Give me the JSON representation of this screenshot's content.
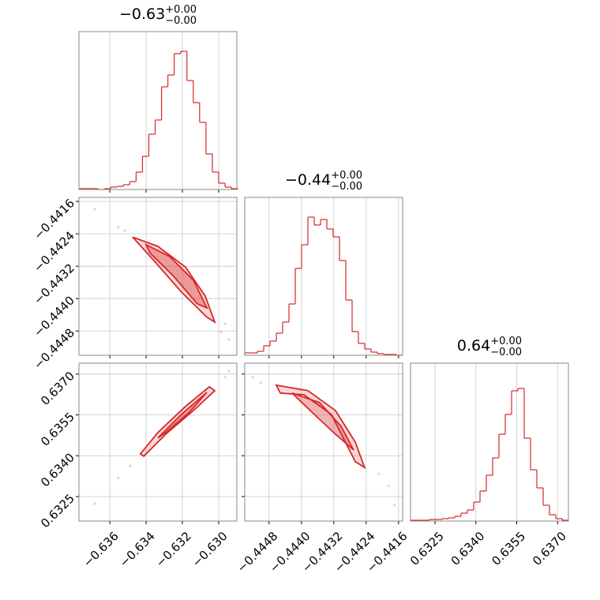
{
  "chart_data": {
    "type": "corner",
    "color": "#d62728",
    "grid": true,
    "hist_ylim": [
      0,
      200
    ],
    "parameters": [
      {
        "title": "−0.63",
        "title_plus": "+0.00",
        "title_minus": "−0.00",
        "lim": [
          -0.6377,
          -0.629
        ],
        "ticks": [
          {
            "value": -0.636,
            "label": "−0.636"
          },
          {
            "value": -0.634,
            "label": "−0.634"
          },
          {
            "value": -0.632,
            "label": "−0.632"
          },
          {
            "value": -0.63,
            "label": "−0.630"
          }
        ],
        "bins": [
          -0.6377,
          -0.63735,
          -0.637,
          -0.63665,
          -0.6363,
          -0.63595,
          -0.6356,
          -0.63525,
          -0.6349,
          -0.63455,
          -0.6342,
          -0.63385,
          -0.6335,
          -0.63315,
          -0.6328,
          -0.63245,
          -0.6321,
          -0.63175,
          -0.6314,
          -0.63105,
          -0.6307,
          -0.63035,
          -0.63,
          -0.62965,
          -0.6293,
          -0.62895
        ],
        "counts": [
          1,
          1,
          1,
          0,
          1,
          3,
          4,
          6,
          10,
          22,
          42,
          70,
          88,
          130,
          145,
          172,
          175,
          138,
          110,
          85,
          45,
          22,
          8,
          3,
          1
        ]
      },
      {
        "title": "−0.44",
        "title_plus": "+0.00",
        "title_minus": "−0.00",
        "lim": [
          -0.4454,
          -0.4415
        ],
        "ticks": [
          {
            "value": -0.4448,
            "label": "−0.4448"
          },
          {
            "value": -0.444,
            "label": "−0.4440"
          },
          {
            "value": -0.4432,
            "label": "−0.4432"
          },
          {
            "value": -0.4424,
            "label": "−0.4424"
          },
          {
            "value": -0.4416,
            "label": "−0.4416"
          }
        ],
        "bins": [
          -0.4454,
          -0.445244,
          -0.445088,
          -0.444932,
          -0.444776,
          -0.44462,
          -0.444464,
          -0.444308,
          -0.444152,
          -0.443996,
          -0.44384,
          -0.443684,
          -0.443528,
          -0.443372,
          -0.443216,
          -0.44306,
          -0.442904,
          -0.442748,
          -0.442592,
          -0.442436,
          -0.44228,
          -0.442124,
          -0.441968,
          -0.441812,
          -0.441656,
          -0.4415
        ],
        "counts": [
          3,
          3,
          5,
          12,
          18,
          28,
          42,
          65,
          110,
          140,
          175,
          165,
          172,
          160,
          150,
          120,
          70,
          30,
          15,
          8,
          4,
          2,
          1,
          1,
          0
        ]
      },
      {
        "title": "0.64",
        "title_plus": "+0.00",
        "title_minus": "−0.00",
        "lim": [
          0.6316,
          0.6374
        ],
        "ticks": [
          0.6325,
          {
            "value": 0.634,
            "label": "0.6340"
          },
          0.6355,
          {
            "value": 0.637,
            "label": "0.6370"
          }
        ],
        "bins": [
          0.6316,
          0.631832,
          0.632064,
          0.632296,
          0.632528,
          0.63276,
          0.632992,
          0.633224,
          0.633456,
          0.633688,
          0.63392,
          0.634152,
          0.634384,
          0.634616,
          0.634848,
          0.63508,
          0.635312,
          0.635544,
          0.635776,
          0.636008,
          0.63624,
          0.636472,
          0.636704,
          0.636936,
          0.637168,
          0.6374
        ],
        "counts": [
          1,
          1,
          1,
          2,
          2,
          3,
          4,
          6,
          10,
          14,
          24,
          38,
          58,
          80,
          110,
          135,
          165,
          168,
          105,
          65,
          42,
          20,
          8,
          3,
          1
        ]
      }
    ],
    "panels": [
      {
        "points": {
          "x": [
            -0.63683,
            -0.63553,
            -0.62987,
            -0.62965,
            -0.62944,
            -0.63518
          ],
          "y": [
            -0.44179,
            -0.44224,
            -0.44482,
            -0.44462,
            -0.44501,
            -0.44232
          ]
        },
        "contours": [
          {
            "x": [
              -0.63474,
              -0.63335,
              -0.63183,
              -0.63074,
              -0.63022,
              -0.63065,
              -0.63205,
              -0.63357
            ],
            "y": [
              -0.44248,
              -0.44271,
              -0.44322,
              -0.44394,
              -0.44458,
              -0.44446,
              -0.44384,
              -0.44306
            ]
          },
          {
            "x": [
              -0.634,
              -0.6327,
              -0.63139,
              -0.63065,
              -0.63118,
              -0.63248,
              -0.63379
            ],
            "y": [
              -0.44267,
              -0.44296,
              -0.44355,
              -0.44423,
              -0.44413,
              -0.44345,
              -0.44287
            ]
          }
        ]
      },
      {
        "points": {
          "x": [
            -0.63683,
            -0.63553,
            -0.63487,
            -0.62965,
            -0.62944
          ],
          "y": [
            0.63224,
            0.63319,
            0.63363,
            0.63688,
            0.63711
          ]
        },
        "contours": [
          {
            "x": [
              -0.63431,
              -0.63335,
              -0.63183,
              -0.63052,
              -0.63022,
              -0.63139,
              -0.63292,
              -0.63413
            ],
            "y": [
              0.63407,
              0.63485,
              0.63581,
              0.63653,
              0.63639,
              0.63566,
              0.63479,
              0.63398
            ]
          },
          {
            "x": [
              -0.63335,
              -0.63205,
              -0.63065,
              -0.63161,
              -0.63292
            ],
            "y": [
              0.63465,
              0.63552,
              0.63633,
              0.6356,
              0.63485
            ]
          }
        ]
      },
      {
        "points": {
          "x": [
            -0.4452,
            -0.44501,
            -0.44209,
            -0.44185,
            -0.4417
          ],
          "y": [
            0.63688,
            0.63668,
            0.63334,
            0.6329,
            0.63218
          ]
        },
        "contours": [
          {
            "x": [
              -0.44462,
              -0.44384,
              -0.44316,
              -0.44267,
              -0.44244,
              -0.44267,
              -0.44326,
              -0.44394,
              -0.44452
            ],
            "y": [
              0.63659,
              0.63639,
              0.63566,
              0.6345,
              0.63357,
              0.63378,
              0.63552,
              0.63624,
              0.6363
            ]
          },
          {
            "x": [
              -0.44423,
              -0.44355,
              -0.44302,
              -0.44271,
              -0.44316,
              -0.44374
            ],
            "y": [
              0.6363,
              0.63595,
              0.63508,
              0.63421,
              0.63479,
              0.6356
            ]
          }
        ]
      }
    ]
  }
}
